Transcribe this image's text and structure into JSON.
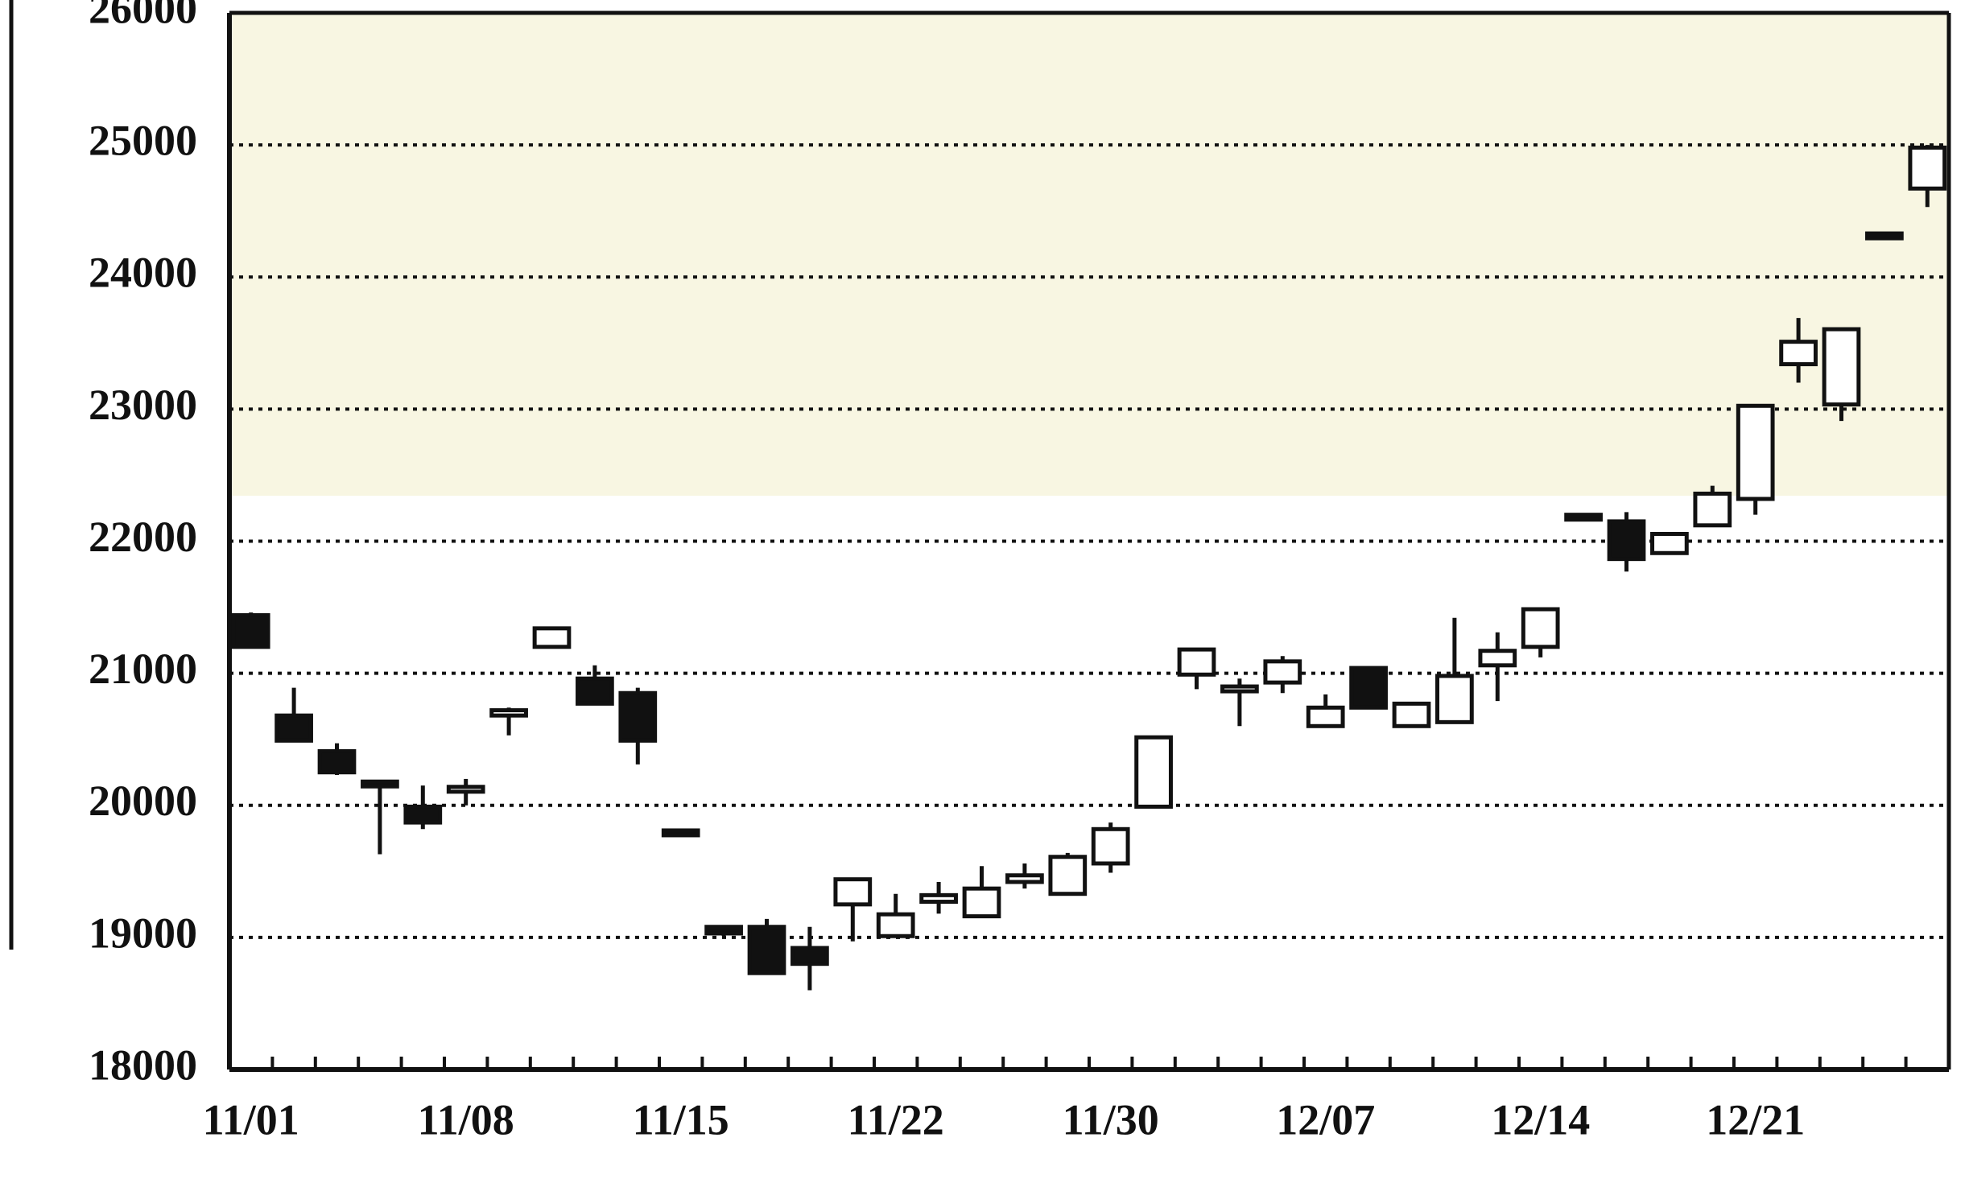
{
  "chart_data": {
    "type": "candlestick",
    "categories": [
      "11/01",
      null,
      null,
      null,
      null,
      "11/08",
      null,
      null,
      null,
      null,
      "11/15",
      null,
      null,
      null,
      null,
      "11/22",
      null,
      null,
      null,
      null,
      "11/30",
      null,
      null,
      null,
      null,
      "12/07",
      null,
      null,
      null,
      null,
      "12/14",
      null,
      null,
      null,
      null,
      "12/21",
      null,
      null,
      null,
      null
    ],
    "open": [
      21440,
      20680,
      20410,
      20180,
      19990,
      20110,
      20680,
      21200,
      20960,
      20850,
      19810,
      19080,
      19080,
      18920,
      19250,
      19010,
      19270,
      19160,
      19420,
      19330,
      19560,
      19990,
      20990,
      20870,
      20930,
      20600,
      21040,
      20600,
      20630,
      21060,
      21200,
      22200,
      22150,
      21910,
      22120,
      22320,
      23340,
      23035,
      24330,
      24670
    ],
    "high": [
      21460,
      20890,
      20470,
      20190,
      20150,
      20200,
      20740,
      21350,
      21060,
      20890,
      19810,
      19090,
      19140,
      19080,
      19440,
      19330,
      19420,
      19540,
      19560,
      19640,
      19870,
      20515,
      21190,
      20960,
      21130,
      20840,
      21050,
      20780,
      21420,
      21310,
      21490,
      22210,
      22220,
      22060,
      22420,
      23025,
      23690,
      23605,
      24340,
      25000
    ],
    "low": [
      21190,
      20480,
      20230,
      19630,
      19820,
      20000,
      20530,
      21190,
      20770,
      20310,
      19790,
      19010,
      18720,
      18600,
      18970,
      19000,
      19180,
      19150,
      19370,
      19320,
      19490,
      19990,
      20880,
      20600,
      20850,
      20590,
      20740,
      20590,
      20630,
      20790,
      21120,
      22190,
      21770,
      21900,
      22110,
      22200,
      23200,
      22910,
      24300,
      24530
    ],
    "close": [
      21200,
      20490,
      20250,
      20170,
      19870,
      20140,
      20720,
      21340,
      20770,
      20490,
      19790,
      19030,
      18730,
      18800,
      19440,
      19175,
      19320,
      19370,
      19470,
      19610,
      19820,
      20515,
      21180,
      20900,
      21090,
      20740,
      20740,
      20770,
      20980,
      21170,
      21485,
      22190,
      21865,
      22055,
      22360,
      23025,
      23510,
      23605,
      24310,
      24980
    ],
    "up_color": "#ffffff",
    "down_color": "#111111",
    "edge_color": "#111111",
    "ylim": [
      18000,
      26000
    ],
    "yticks": [
      18000,
      19000,
      20000,
      21000,
      22000,
      23000,
      24000,
      25000,
      26000
    ],
    "grid": true
  }
}
